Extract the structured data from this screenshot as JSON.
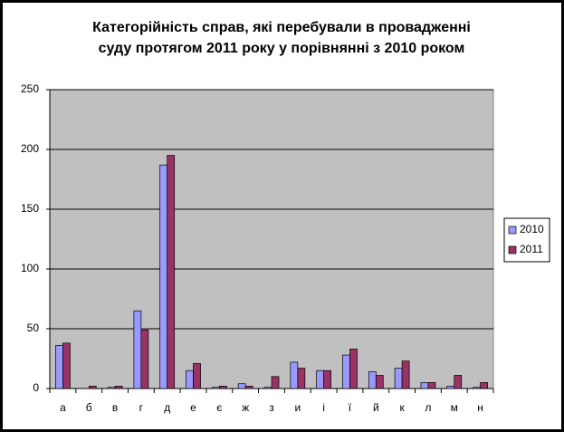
{
  "chart_data": {
    "type": "bar",
    "title": [
      "Категорійність справ, які перебували в провадженні",
      "суду протягом  2011 року у порівнянні з 2010 роком"
    ],
    "categories": [
      "а",
      "б",
      "в",
      "г",
      "д",
      "е",
      "є",
      "ж",
      "з",
      "и",
      "і",
      "ї",
      "й",
      "к",
      "л",
      "м",
      "н"
    ],
    "series": [
      {
        "name": "2010",
        "color": "#9999ff",
        "values": [
          36,
          0,
          1,
          65,
          187,
          15,
          1,
          4,
          1,
          22,
          15,
          28,
          14,
          17,
          5,
          2,
          1
        ]
      },
      {
        "name": "2011",
        "color": "#993366",
        "values": [
          38,
          2,
          2,
          49,
          195,
          21,
          2,
          2,
          10,
          17,
          15,
          33,
          11,
          23,
          5,
          11,
          5
        ]
      }
    ],
    "ylim": [
      0,
      250
    ],
    "yticks": [
      0,
      50,
      100,
      150,
      200,
      250
    ],
    "grid": true,
    "legend": "right",
    "plot_background": "#c0c0c0"
  }
}
